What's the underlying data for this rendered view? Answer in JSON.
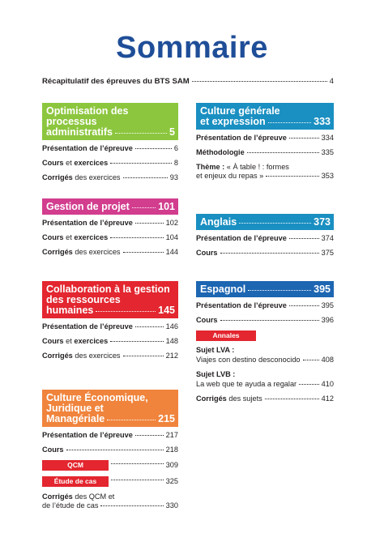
{
  "title": "Sommaire",
  "recap": {
    "label": "Récapitulatif des épreuves du BTS SAM",
    "page": "4"
  },
  "left": [
    {
      "title_lines": [
        "Optimisation des processus",
        "administratifs"
      ],
      "page": "5",
      "color": "#8cc63e",
      "entries": [
        {
          "bold": "Présentation de l’épreuve",
          "rest": "",
          "page": "6"
        },
        {
          "bold": "Cours",
          "rest": " et ",
          "bold2": "exercices",
          "page": "8"
        },
        {
          "bold": "Corrigés",
          "rest": " des exercices",
          "page": "93"
        }
      ]
    },
    {
      "title_lines": [
        "Gestion de projet"
      ],
      "page": "101",
      "color": "#d23d8e",
      "entries": [
        {
          "bold": "Présentation de l’épreuve",
          "rest": "",
          "page": "102"
        },
        {
          "bold": "Cours",
          "rest": " et ",
          "bold2": "exercices",
          "page": "104"
        },
        {
          "bold": "Corrigés",
          "rest": " des exercices",
          "page": "144"
        }
      ]
    },
    {
      "title_lines": [
        "Collaboration à la gestion",
        "des ressources",
        "humaines"
      ],
      "page": "145",
      "color": "#e3262f",
      "entries": [
        {
          "bold": "Présentation de l’épreuve",
          "rest": "",
          "page": "146"
        },
        {
          "bold": "Cours",
          "rest": " et ",
          "bold2": "exercices",
          "page": "148"
        },
        {
          "bold": "Corrigés",
          "rest": " des exercices",
          "page": "212"
        }
      ]
    },
    {
      "title_lines": [
        "Culture Économique,",
        "Juridique et",
        "Managériale"
      ],
      "page": "215",
      "color": "#f0843c",
      "entries": [
        {
          "bold": "Présentation de l’épreuve",
          "rest": "",
          "page": "217"
        },
        {
          "bold": "Cours",
          "rest": "",
          "page": "218"
        }
      ],
      "tags": [
        {
          "label": "QCM",
          "page": "309"
        },
        {
          "label": "Étude de cas",
          "page": "325"
        }
      ],
      "final": {
        "bold": "Corrigés",
        "line1_rest": " des QCM et",
        "line2": "de l’étude de cas",
        "page": "330"
      }
    }
  ],
  "right": {
    "culture": {
      "title_lines": [
        "Culture générale",
        "et expression"
      ],
      "page": "333",
      "color": "#1a8fc1",
      "presentation": {
        "label": "Présentation de l’épreuve",
        "page": "334"
      },
      "methodologie": {
        "label": "Méthodologie",
        "page": "335"
      },
      "theme": {
        "bold": "Thème :",
        "line1_rest": " « À table ! : formes",
        "line2": "et enjeux du repas »",
        "page": "353"
      }
    },
    "anglais": {
      "title": "Anglais",
      "page": "373",
      "color": "#1a8fc1",
      "presentation": {
        "label": "Présentation de l’épreuve",
        "page": "374"
      },
      "cours": {
        "label": "Cours",
        "page": "375"
      }
    },
    "espagnol": {
      "title": "Espagnol",
      "page": "395",
      "color": "#1d66b2",
      "presentation": {
        "label": "Présentation de l’épreuve",
        "page": "395"
      },
      "cours": {
        "label": "Cours",
        "page": "396"
      },
      "annales": "Annales",
      "lva": {
        "label": "Sujet LVA :",
        "text": "Viajes con destino desconocido",
        "page": "408"
      },
      "lvb": {
        "label": "Sujet LVB :",
        "text": "La web que te ayuda a regalar",
        "page": "410"
      },
      "corriges": {
        "bold": "Corrigés",
        "rest": " des sujets",
        "page": "412"
      }
    }
  }
}
